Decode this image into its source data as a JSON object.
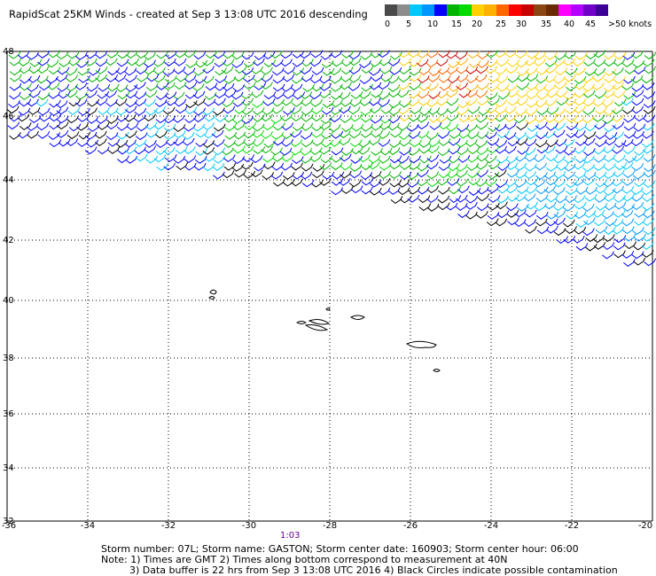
{
  "header": {
    "title": "RapidScat 25KM Winds - created at Sep  3 13:08 UTC 2016 descending"
  },
  "scale": {
    "labels": [
      "0",
      "5",
      "10",
      "15",
      "20",
      "25",
      "30",
      "35",
      "40",
      "45",
      ">50 knots"
    ],
    "colors": [
      "#4a4a4a",
      "#8c8c8c",
      "#00c8ff",
      "#0096ff",
      "#0000ff",
      "#00b400",
      "#00dc00",
      "#ffd000",
      "#ffb000",
      "#ff6600",
      "#ff0000",
      "#c80000",
      "#8b4513",
      "#6a2a00",
      "#ff00ff",
      "#b400ff",
      "#7000c8",
      "#3c0096"
    ]
  },
  "map": {
    "lon_labels": [
      "-36",
      "-34",
      "-32",
      "-30",
      "-28",
      "-26",
      "-24",
      "-22",
      "-20"
    ],
    "lat_labels": [
      "48",
      "46",
      "44",
      "42",
      "40",
      "38",
      "36",
      "34",
      "32"
    ]
  },
  "time_label": "1:03",
  "footer": {
    "line1": "Storm number: 07L;  Storm name: GASTON;  Storm center date: 160903;  Storm center hour: 06:00",
    "line2": "Note: 1) Times are GMT  2) Times along bottom correspond to measurement at 40N",
    "line3": "3) Data buffer is 22 hrs from Sep  3 13:08 UTC 2016  4) Black Circles indicate possible contamination"
  }
}
